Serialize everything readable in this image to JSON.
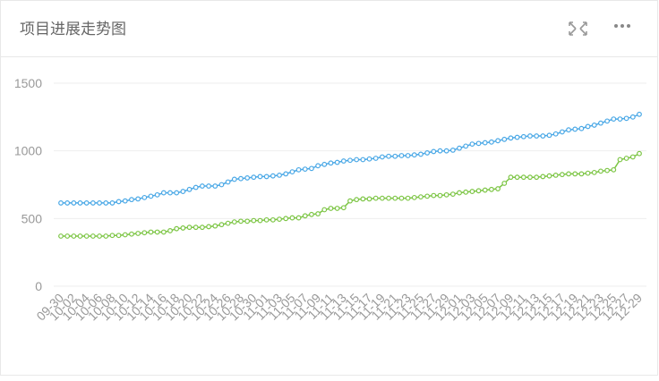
{
  "chart_data": {
    "type": "line",
    "title": "项目进展走势图",
    "categories": [
      "09-30",
      null,
      "10-02",
      null,
      "10-04",
      null,
      "10-06",
      null,
      "10-08",
      null,
      "10-10",
      null,
      "10-12",
      null,
      "10-14",
      null,
      "10-16",
      null,
      "10-18",
      null,
      "10-20",
      null,
      "10-22",
      null,
      "10-24",
      null,
      "10-26",
      null,
      "10-28",
      null,
      "10-30",
      null,
      "11-01",
      null,
      "11-03",
      null,
      "11-05",
      null,
      "11-07",
      null,
      "11-09",
      null,
      "11-11",
      null,
      "11-13",
      null,
      "11-15",
      null,
      "11-17",
      null,
      "11-19",
      null,
      "11-21",
      null,
      "11-23",
      null,
      "11-25",
      null,
      "11-27",
      null,
      "11-29",
      null,
      "12-01",
      null,
      "12-03",
      null,
      "12-05",
      null,
      "12-07",
      null,
      "12-09",
      null,
      "12-11",
      null,
      "12-13",
      null,
      "12-15",
      null,
      "12-17",
      null,
      "12-19",
      null,
      "12-21",
      null,
      "12-23",
      null,
      "12-25",
      null,
      "12-27",
      null,
      "12-29"
    ],
    "series": [
      {
        "color": "#4aa8e6",
        "values": [
          615,
          615,
          615,
          615,
          615,
          615,
          615,
          615,
          615,
          625,
          630,
          640,
          645,
          655,
          665,
          675,
          690,
          690,
          690,
          700,
          715,
          730,
          740,
          740,
          740,
          750,
          770,
          790,
          795,
          800,
          805,
          810,
          810,
          815,
          820,
          830,
          845,
          860,
          865,
          870,
          890,
          900,
          910,
          915,
          925,
          930,
          935,
          935,
          940,
          945,
          955,
          960,
          960,
          965,
          965,
          970,
          975,
          985,
          995,
          1000,
          1000,
          1005,
          1020,
          1035,
          1050,
          1055,
          1060,
          1065,
          1075,
          1085,
          1095,
          1100,
          1105,
          1110,
          1110,
          1110,
          1115,
          1125,
          1140,
          1155,
          1160,
          1165,
          1180,
          1190,
          1205,
          1220,
          1235,
          1235,
          1240,
          1250,
          1270
        ]
      },
      {
        "color": "#7cc544",
        "values": [
          370,
          370,
          370,
          370,
          370,
          370,
          370,
          370,
          375,
          375,
          380,
          385,
          390,
          395,
          400,
          400,
          400,
          410,
          425,
          430,
          435,
          435,
          435,
          440,
          445,
          455,
          465,
          475,
          480,
          480,
          485,
          485,
          490,
          490,
          495,
          500,
          505,
          505,
          520,
          530,
          535,
          565,
          575,
          575,
          580,
          630,
          640,
          645,
          645,
          650,
          650,
          650,
          650,
          650,
          650,
          655,
          660,
          665,
          670,
          670,
          675,
          680,
          690,
          695,
          700,
          705,
          710,
          715,
          720,
          760,
          805,
          805,
          805,
          805,
          805,
          810,
          815,
          820,
          825,
          830,
          830,
          830,
          835,
          840,
          850,
          855,
          860,
          935,
          945,
          955,
          980
        ]
      }
    ],
    "ylim": [
      0,
      1500
    ],
    "yticks": [
      0,
      500,
      1000,
      1500
    ],
    "grid": true
  }
}
